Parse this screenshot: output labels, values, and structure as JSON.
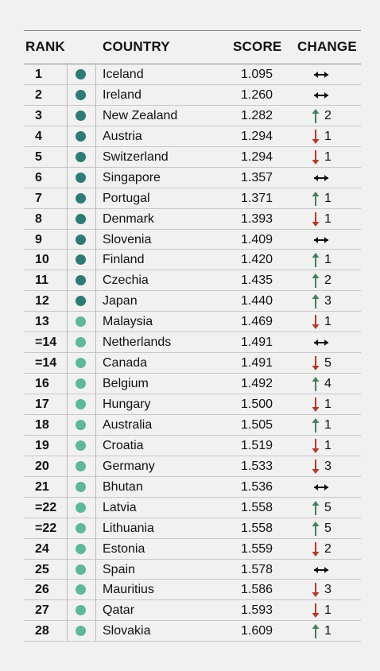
{
  "table": {
    "headers": {
      "rank": "RANK",
      "country": "COUNTRY",
      "score": "SCORE",
      "change": "CHANGE"
    },
    "colors": {
      "dark_dot": "#2e7a74",
      "light_dot": "#5fb79d",
      "up": "#4a7d5e",
      "down": "#b23a2e",
      "same": "#111111"
    },
    "rows": [
      {
        "rank": "1",
        "country": "Iceland",
        "score": "1.095",
        "dir": "same",
        "change": "",
        "tier": "dark"
      },
      {
        "rank": "2",
        "country": "Ireland",
        "score": "1.260",
        "dir": "same",
        "change": "",
        "tier": "dark"
      },
      {
        "rank": "3",
        "country": "New Zealand",
        "score": "1.282",
        "dir": "up",
        "change": "2",
        "tier": "dark"
      },
      {
        "rank": "4",
        "country": "Austria",
        "score": "1.294",
        "dir": "down",
        "change": "1",
        "tier": "dark"
      },
      {
        "rank": "5",
        "country": "Switzerland",
        "score": "1.294",
        "dir": "down",
        "change": "1",
        "tier": "dark"
      },
      {
        "rank": "6",
        "country": "Singapore",
        "score": "1.357",
        "dir": "same",
        "change": "",
        "tier": "dark"
      },
      {
        "rank": "7",
        "country": "Portugal",
        "score": "1.371",
        "dir": "up",
        "change": "1",
        "tier": "dark"
      },
      {
        "rank": "8",
        "country": "Denmark",
        "score": "1.393",
        "dir": "down",
        "change": "1",
        "tier": "dark"
      },
      {
        "rank": "9",
        "country": "Slovenia",
        "score": "1.409",
        "dir": "same",
        "change": "",
        "tier": "dark"
      },
      {
        "rank": "10",
        "country": "Finland",
        "score": "1.420",
        "dir": "up",
        "change": "1",
        "tier": "dark"
      },
      {
        "rank": "11",
        "country": "Czechia",
        "score": "1.435",
        "dir": "up",
        "change": "2",
        "tier": "dark"
      },
      {
        "rank": "12",
        "country": "Japan",
        "score": "1.440",
        "dir": "up",
        "change": "3",
        "tier": "dark"
      },
      {
        "rank": "13",
        "country": "Malaysia",
        "score": "1.469",
        "dir": "down",
        "change": "1",
        "tier": "light"
      },
      {
        "rank": "=14",
        "country": "Netherlands",
        "score": "1.491",
        "dir": "same",
        "change": "",
        "tier": "light"
      },
      {
        "rank": "=14",
        "country": "Canada",
        "score": "1.491",
        "dir": "down",
        "change": "5",
        "tier": "light"
      },
      {
        "rank": "16",
        "country": "Belgium",
        "score": "1.492",
        "dir": "up",
        "change": "4",
        "tier": "light"
      },
      {
        "rank": "17",
        "country": "Hungary",
        "score": "1.500",
        "dir": "down",
        "change": "1",
        "tier": "light"
      },
      {
        "rank": "18",
        "country": "Australia",
        "score": "1.505",
        "dir": "up",
        "change": "1",
        "tier": "light"
      },
      {
        "rank": "19",
        "country": "Croatia",
        "score": "1.519",
        "dir": "down",
        "change": "1",
        "tier": "light"
      },
      {
        "rank": "20",
        "country": "Germany",
        "score": "1.533",
        "dir": "down",
        "change": "3",
        "tier": "light"
      },
      {
        "rank": "21",
        "country": "Bhutan",
        "score": "1.536",
        "dir": "same",
        "change": "",
        "tier": "light"
      },
      {
        "rank": "=22",
        "country": "Latvia",
        "score": "1.558",
        "dir": "up",
        "change": "5",
        "tier": "light"
      },
      {
        "rank": "=22",
        "country": "Lithuania",
        "score": "1.558",
        "dir": "up",
        "change": "5",
        "tier": "light"
      },
      {
        "rank": "24",
        "country": "Estonia",
        "score": "1.559",
        "dir": "down",
        "change": "2",
        "tier": "light"
      },
      {
        "rank": "25",
        "country": "Spain",
        "score": "1.578",
        "dir": "same",
        "change": "",
        "tier": "light"
      },
      {
        "rank": "26",
        "country": "Mauritius",
        "score": "1.586",
        "dir": "down",
        "change": "3",
        "tier": "light"
      },
      {
        "rank": "27",
        "country": "Qatar",
        "score": "1.593",
        "dir": "down",
        "change": "1",
        "tier": "light"
      },
      {
        "rank": "28",
        "country": "Slovakia",
        "score": "1.609",
        "dir": "up",
        "change": "1",
        "tier": "light"
      }
    ]
  },
  "chart_data": {
    "type": "table",
    "columns": [
      "RANK",
      "COUNTRY",
      "SCORE",
      "CHANGE"
    ],
    "rows": [
      [
        "1",
        "Iceland",
        1.095,
        "same"
      ],
      [
        "2",
        "Ireland",
        1.26,
        "same"
      ],
      [
        "3",
        "New Zealand",
        1.282,
        "up 2"
      ],
      [
        "4",
        "Austria",
        1.294,
        "down 1"
      ],
      [
        "5",
        "Switzerland",
        1.294,
        "down 1"
      ],
      [
        "6",
        "Singapore",
        1.357,
        "same"
      ],
      [
        "7",
        "Portugal",
        1.371,
        "up 1"
      ],
      [
        "8",
        "Denmark",
        1.393,
        "down 1"
      ],
      [
        "9",
        "Slovenia",
        1.409,
        "same"
      ],
      [
        "10",
        "Finland",
        1.42,
        "up 1"
      ],
      [
        "11",
        "Czechia",
        1.435,
        "up 2"
      ],
      [
        "12",
        "Japan",
        1.44,
        "up 3"
      ],
      [
        "13",
        "Malaysia",
        1.469,
        "down 1"
      ],
      [
        "=14",
        "Netherlands",
        1.491,
        "same"
      ],
      [
        "=14",
        "Canada",
        1.491,
        "down 5"
      ],
      [
        "16",
        "Belgium",
        1.492,
        "up 4"
      ],
      [
        "17",
        "Hungary",
        1.5,
        "down 1"
      ],
      [
        "18",
        "Australia",
        1.505,
        "up 1"
      ],
      [
        "19",
        "Croatia",
        1.519,
        "down 1"
      ],
      [
        "20",
        "Germany",
        1.533,
        "down 3"
      ],
      [
        "21",
        "Bhutan",
        1.536,
        "same"
      ],
      [
        "=22",
        "Latvia",
        1.558,
        "up 5"
      ],
      [
        "=22",
        "Lithuania",
        1.558,
        "up 5"
      ],
      [
        "24",
        "Estonia",
        1.559,
        "down 2"
      ],
      [
        "25",
        "Spain",
        1.578,
        "same"
      ],
      [
        "26",
        "Mauritius",
        1.586,
        "down 3"
      ],
      [
        "27",
        "Qatar",
        1.593,
        "down 1"
      ],
      [
        "28",
        "Slovakia",
        1.609,
        "up 1"
      ]
    ]
  }
}
